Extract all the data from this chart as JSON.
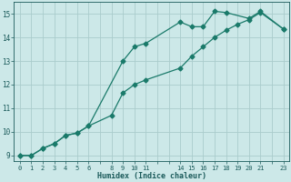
{
  "xlabel": "Humidex (Indice chaleur)",
  "bg_color": "#cce8e8",
  "grid_color": "#aacccc",
  "line_color": "#1a7a6a",
  "xlim": [
    -0.5,
    23.5
  ],
  "ylim": [
    8.75,
    15.5
  ],
  "yticks": [
    9,
    10,
    11,
    12,
    13,
    14,
    15
  ],
  "xticks_all": [
    0,
    1,
    2,
    3,
    4,
    5,
    6,
    7,
    8,
    9,
    10,
    11,
    12,
    13,
    14,
    15,
    16,
    17,
    18,
    19,
    20,
    21,
    22,
    23
  ],
  "xtick_labels": {
    "0": "0",
    "1": "1",
    "2": "2",
    "3": "3",
    "4": "4",
    "5": "5",
    "6": "6",
    "7": "",
    "8": "8",
    "9": "9",
    "10": "10",
    "11": "11",
    "12": "",
    "13": "",
    "14": "14",
    "15": "15",
    "16": "16",
    "17": "17",
    "18": "18",
    "19": "19",
    "20": "20",
    "21": "21",
    "22": "",
    "23": "23"
  },
  "series1_x": [
    0,
    1,
    2,
    3,
    4,
    5,
    6,
    9,
    10,
    11,
    14,
    15,
    16,
    17,
    18,
    20,
    21,
    23
  ],
  "series1_y": [
    9.0,
    9.0,
    9.3,
    9.5,
    9.85,
    9.95,
    10.25,
    13.0,
    13.6,
    13.75,
    14.65,
    14.45,
    14.45,
    15.1,
    15.05,
    14.8,
    15.1,
    14.35
  ],
  "series2_x": [
    0,
    1,
    2,
    3,
    4,
    5,
    6,
    8,
    9,
    10,
    11,
    14,
    15,
    16,
    17,
    18,
    19,
    20,
    21,
    23
  ],
  "series2_y": [
    9.0,
    9.0,
    9.3,
    9.5,
    9.85,
    9.95,
    10.25,
    10.7,
    11.65,
    12.0,
    12.2,
    12.7,
    13.2,
    13.6,
    14.0,
    14.3,
    14.55,
    14.75,
    15.05,
    14.35
  ],
  "font_color": "#1a5a5a",
  "markersize": 2.5,
  "linewidth": 0.9
}
